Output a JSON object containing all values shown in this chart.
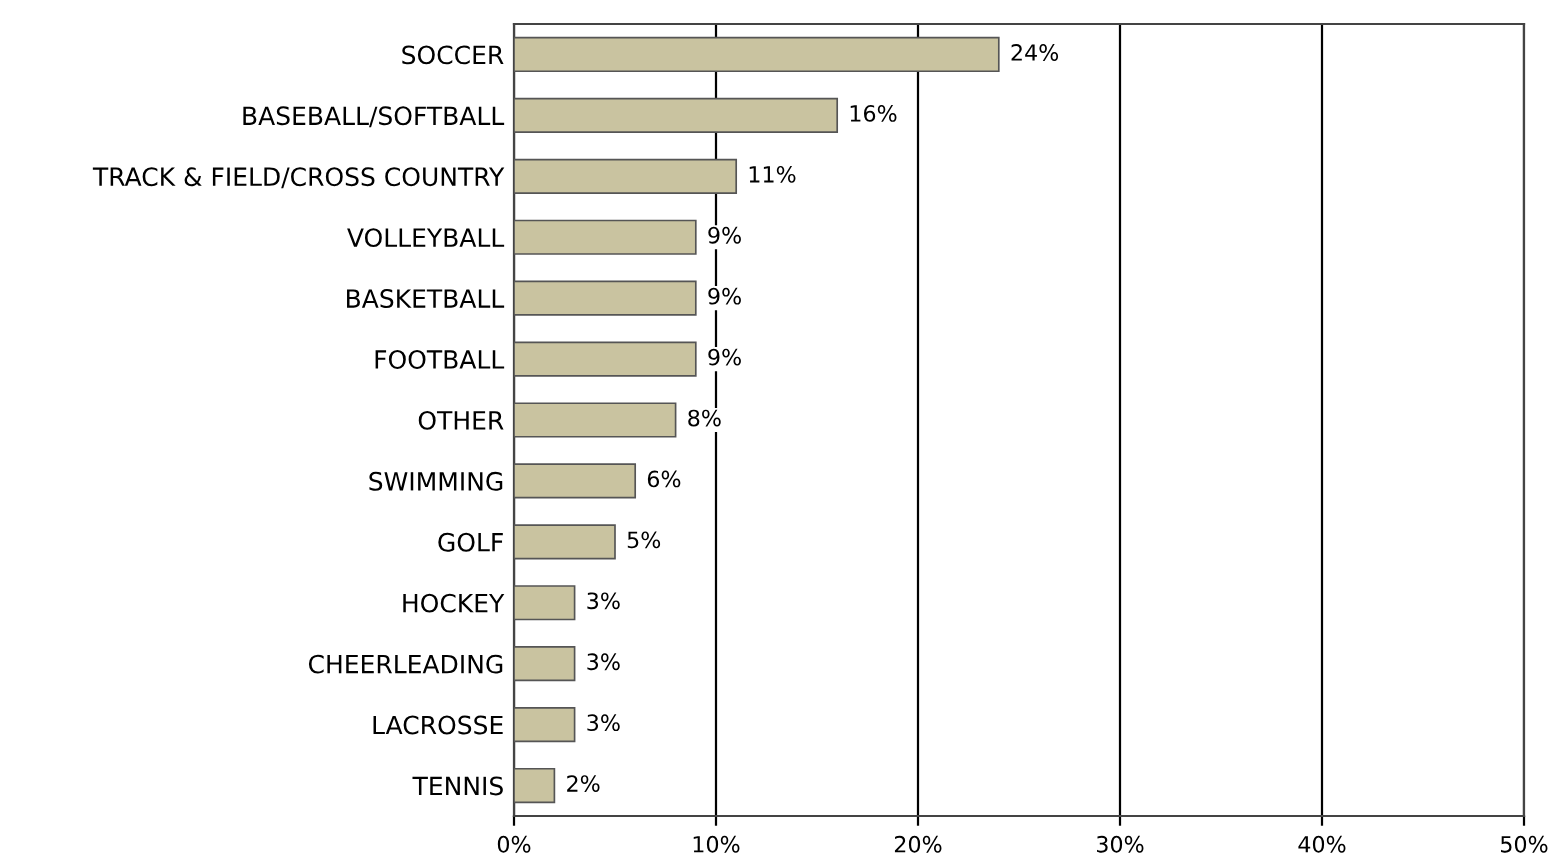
{
  "chart_data": {
    "type": "bar",
    "orientation": "horizontal",
    "categories": [
      "SOCCER",
      "BASEBALL/SOFTBALL",
      "TRACK & FIELD/CROSS COUNTRY",
      "VOLLEYBALL",
      "BASKETBALL",
      "FOOTBALL",
      "OTHER",
      "SWIMMING",
      "GOLF",
      "HOCKEY",
      "CHEERLEADING",
      "LACROSSE",
      "TENNIS"
    ],
    "values": [
      24,
      16,
      11,
      9,
      9,
      9,
      8,
      6,
      5,
      3,
      3,
      3,
      2
    ],
    "value_labels": [
      "24%",
      "16%",
      "11%",
      "9%",
      "9%",
      "9%",
      "8%",
      "6%",
      "5%",
      "3%",
      "3%",
      "3%",
      "2%"
    ],
    "color": "#c9c3a0",
    "xlim": [
      0,
      50
    ],
    "xticks": [
      {
        "value": 0,
        "label": "0%"
      },
      {
        "value": 10,
        "label": "10%"
      },
      {
        "value": 20,
        "label": "20%"
      },
      {
        "value": 30,
        "label": "30%"
      },
      {
        "value": 40,
        "label": "40%"
      },
      {
        "value": 50,
        "label": "50%"
      }
    ],
    "grid": "x",
    "legend": false
  }
}
